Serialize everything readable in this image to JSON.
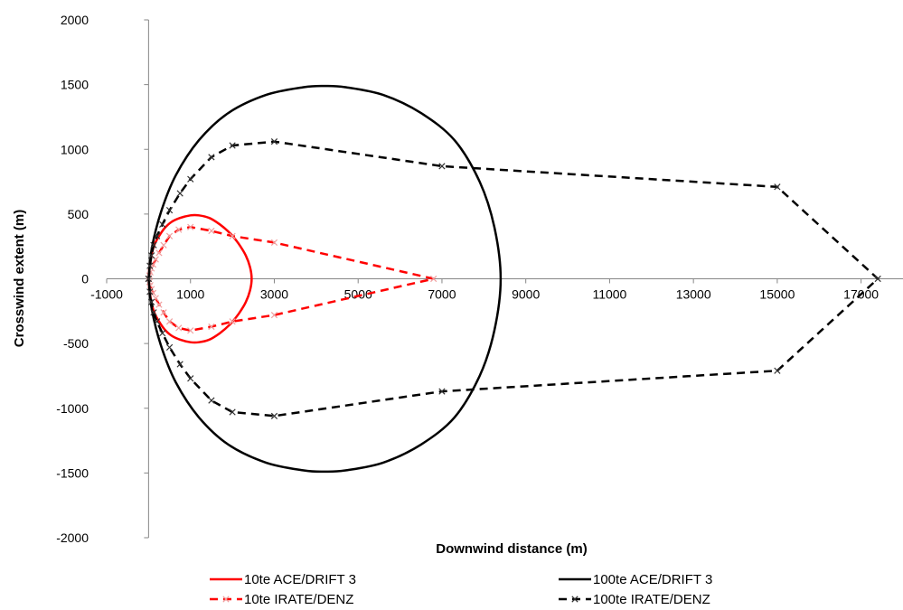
{
  "chart_data": {
    "type": "scatter",
    "xlabel": "Downwind distance (m)",
    "ylabel": "Crosswind extent (m)",
    "xlim": [
      -1000,
      18000
    ],
    "ylim": [
      -2000,
      2000
    ],
    "x_ticks": [
      -1000,
      1000,
      3000,
      5000,
      7000,
      9000,
      11000,
      13000,
      15000,
      17000
    ],
    "x_tick_labels": [
      "-1000",
      "1000",
      "3000",
      "5000",
      "7000",
      "9000",
      "11000",
      "13000",
      "15000",
      "17000"
    ],
    "y_ticks": [
      -2000,
      -1500,
      -1000,
      -500,
      0,
      500,
      1000,
      1500,
      2000
    ],
    "y_tick_labels": [
      "-2000",
      "-1500",
      "-1000",
      "-500",
      "0",
      "500",
      "1000",
      "1500",
      "2000"
    ],
    "grid": false,
    "legend_position": "bottom",
    "series": [
      {
        "name": "10te ACE/DRIFT 3",
        "color": "#ff0000",
        "line": "solid",
        "marker": "none",
        "x": [
          0,
          30,
          80,
          150,
          250,
          380,
          550,
          750,
          1000,
          1200,
          1450,
          1700,
          1950,
          2150,
          2320,
          2420,
          2460,
          2420,
          2320,
          2150,
          1950,
          1700,
          1450,
          1200,
          1000,
          750,
          550,
          380,
          250,
          150,
          80,
          30,
          0
        ],
        "y": [
          0,
          110,
          200,
          270,
          330,
          390,
          440,
          470,
          490,
          490,
          470,
          420,
          350,
          270,
          180,
          90,
          0,
          -90,
          -180,
          -270,
          -350,
          -420,
          -470,
          -490,
          -490,
          -470,
          -440,
          -390,
          -330,
          -270,
          -200,
          -110,
          0
        ]
      },
      {
        "name": "10te IRATE/DENZ",
        "color": "#ff0000",
        "line": "dashed",
        "marker": "x",
        "x": [
          0,
          20,
          40,
          70,
          110,
          170,
          250,
          360,
          500,
          720,
          1000,
          1500,
          2000,
          3000,
          6800,
          3000,
          2000,
          1500,
          1000,
          720,
          500,
          360,
          250,
          170,
          110,
          70,
          40,
          20,
          0
        ],
        "y": [
          0,
          25,
          50,
          80,
          110,
          150,
          200,
          260,
          330,
          380,
          400,
          370,
          330,
          280,
          0,
          -280,
          -330,
          -370,
          -400,
          -380,
          -330,
          -260,
          -200,
          -150,
          -110,
          -80,
          -50,
          -25,
          0
        ]
      },
      {
        "name": "100te ACE/DRIFT 3",
        "color": "#000000",
        "line": "solid",
        "marker": "none",
        "x": [
          0,
          80,
          300,
          650,
          1200,
          1900,
          2800,
          3700,
          4200,
          4700,
          5600,
          6500,
          7300,
          7900,
          8250,
          8400,
          8250,
          7900,
          7300,
          6500,
          5600,
          4700,
          4200,
          3700,
          2800,
          1900,
          1200,
          650,
          300,
          80,
          0
        ],
        "y": [
          0,
          240,
          520,
          800,
          1070,
          1280,
          1420,
          1480,
          1490,
          1480,
          1420,
          1280,
          1070,
          750,
          400,
          0,
          -400,
          -750,
          -1070,
          -1280,
          -1420,
          -1480,
          -1490,
          -1480,
          -1420,
          -1280,
          -1070,
          -800,
          -520,
          -240,
          0
        ]
      },
      {
        "name": "100te IRATE/DENZ",
        "color": "#000000",
        "line": "dashed",
        "marker": "x",
        "x": [
          0,
          30,
          70,
          120,
          200,
          330,
          500,
          750,
          1000,
          1500,
          2000,
          3000,
          7000,
          15000,
          17400,
          15000,
          7000,
          3000,
          2000,
          1500,
          1000,
          750,
          500,
          330,
          200,
          120,
          70,
          30,
          0
        ],
        "y": [
          0,
          100,
          180,
          260,
          330,
          420,
          530,
          660,
          770,
          940,
          1030,
          1060,
          870,
          710,
          0,
          -710,
          -870,
          -1060,
          -1030,
          -940,
          -770,
          -660,
          -530,
          -420,
          -330,
          -260,
          -180,
          -100,
          0
        ]
      }
    ]
  }
}
